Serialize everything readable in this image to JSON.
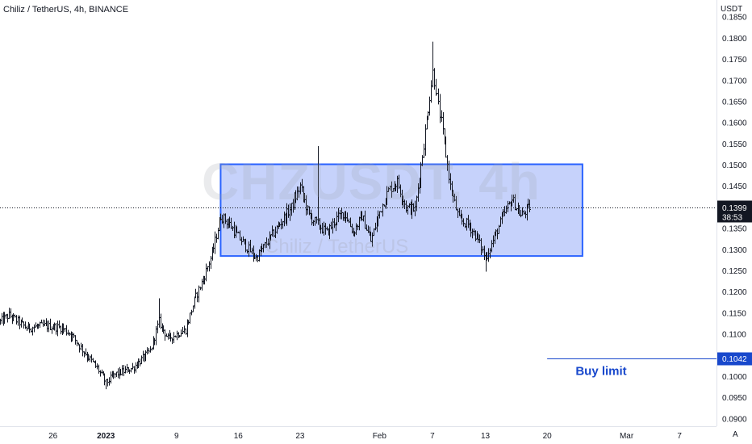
{
  "header": {
    "symbol_line": "Chiliz / TetherUS, 4h, BINANCE",
    "currency": "USDT",
    "scale_mode": "A"
  },
  "watermark": {
    "ticker": "CHZUSDT, 4h",
    "description": "Chiliz / TetherUS"
  },
  "colors": {
    "candle": "#131722",
    "zone_fill": "#aebff9",
    "zone_border": "#2962ff",
    "buy_line": "#1848cc",
    "buy_label_bg": "#1848cc",
    "price_label_bg": "#131722",
    "axis_text": "#131722"
  },
  "chart_data": {
    "type": "bar",
    "style": "ohlc",
    "yaxis": {
      "ticks": [
        "0.1850",
        "0.1800",
        "0.1750",
        "0.1700",
        "0.1650",
        "0.1600",
        "0.1550",
        "0.1500",
        "0.1450",
        "0.1400",
        "0.1350",
        "0.1300",
        "0.1250",
        "0.1200",
        "0.1150",
        "0.1100",
        "0.1050",
        "0.1000",
        "0.0950",
        "0.0900"
      ],
      "ylim": [
        0.089,
        0.186
      ]
    },
    "xaxis": {
      "ticks": [
        "26",
        "2023",
        "9",
        "16",
        "23",
        "Feb",
        "7",
        "13",
        "20",
        "Mar",
        "7"
      ],
      "tick_dates": [
        "2022-12-26",
        "2023-01-01",
        "2023-01-09",
        "2023-01-16",
        "2023-01-23",
        "2023-02-01",
        "2023-02-07",
        "2023-02-13",
        "2023-02-20",
        "2023-03-01",
        "2023-03-07"
      ],
      "range": [
        "2022-12-20",
        "2023-03-10"
      ],
      "bold_ticks": [
        "2023"
      ]
    },
    "price_path": [
      [
        "2022-12-20",
        0.113
      ],
      [
        "2022-12-21",
        0.1145
      ],
      [
        "2022-12-23",
        0.1115
      ],
      [
        "2022-12-25",
        0.112
      ],
      [
        "2022-12-27",
        0.1115
      ],
      [
        "2022-12-28",
        0.11
      ],
      [
        "2022-12-30",
        0.1045
      ],
      [
        "2022-12-31",
        0.102
      ],
      [
        "2023-01-01",
        0.0985
      ],
      [
        "2023-01-02",
        0.1005
      ],
      [
        "2023-01-04",
        0.102
      ],
      [
        "2023-01-06",
        0.106
      ],
      [
        "2023-01-07",
        0.113
      ],
      [
        "2023-01-08",
        0.109
      ],
      [
        "2023-01-10",
        0.111
      ],
      [
        "2023-01-11",
        0.118
      ],
      [
        "2023-01-12",
        0.123
      ],
      [
        "2023-01-13",
        0.129
      ],
      [
        "2023-01-14",
        0.138
      ],
      [
        "2023-01-15",
        0.136
      ],
      [
        "2023-01-16",
        0.133
      ],
      [
        "2023-01-18",
        0.128
      ],
      [
        "2023-01-19",
        0.131
      ],
      [
        "2023-01-20",
        0.134
      ],
      [
        "2023-01-21",
        0.137
      ],
      [
        "2023-01-22",
        0.14
      ],
      [
        "2023-01-23",
        0.145
      ],
      [
        "2023-01-24",
        0.138
      ],
      [
        "2023-01-26",
        0.134
      ],
      [
        "2023-01-27",
        0.137
      ],
      [
        "2023-01-28",
        0.139
      ],
      [
        "2023-01-29",
        0.134
      ],
      [
        "2023-01-30",
        0.138
      ],
      [
        "2023-01-31",
        0.132
      ],
      [
        "2023-02-01",
        0.139
      ],
      [
        "2023-02-02",
        0.144
      ],
      [
        "2023-02-03",
        0.146
      ],
      [
        "2023-02-04",
        0.14
      ],
      [
        "2023-02-05",
        0.1395
      ],
      [
        "2023-02-06",
        0.155
      ],
      [
        "2023-02-07",
        0.172
      ],
      [
        "2023-02-08",
        0.16
      ],
      [
        "2023-02-09",
        0.145
      ],
      [
        "2023-02-10",
        0.137
      ],
      [
        "2023-02-11",
        0.136
      ],
      [
        "2023-02-12",
        0.133
      ],
      [
        "2023-02-13",
        0.128
      ],
      [
        "2023-02-14",
        0.133
      ],
      [
        "2023-02-15",
        0.138
      ],
      [
        "2023-02-16",
        0.142
      ],
      [
        "2023-02-17",
        0.138
      ],
      [
        "2023-02-18",
        0.14
      ]
    ],
    "key_candles": [
      {
        "date": "2023-01-01",
        "low": 0.097
      },
      {
        "date": "2023-01-07",
        "high": 0.1185
      },
      {
        "date": "2023-01-25",
        "high": 0.1545
      },
      {
        "date": "2023-02-07",
        "high": 0.1792
      },
      {
        "date": "2023-02-13",
        "low": 0.1248
      }
    ],
    "last_price": 0.1399,
    "last_price_label": "0.1399",
    "countdown": "38:53",
    "zone": {
      "type": "rectangle",
      "from": "2023-01-14",
      "to": "2023-02-24",
      "top": 0.1502,
      "bottom": 0.1285
    },
    "buy_limit": {
      "price": 0.1042,
      "price_label": "0.1042",
      "label": "Buy limit",
      "from": "2023-02-20"
    }
  }
}
